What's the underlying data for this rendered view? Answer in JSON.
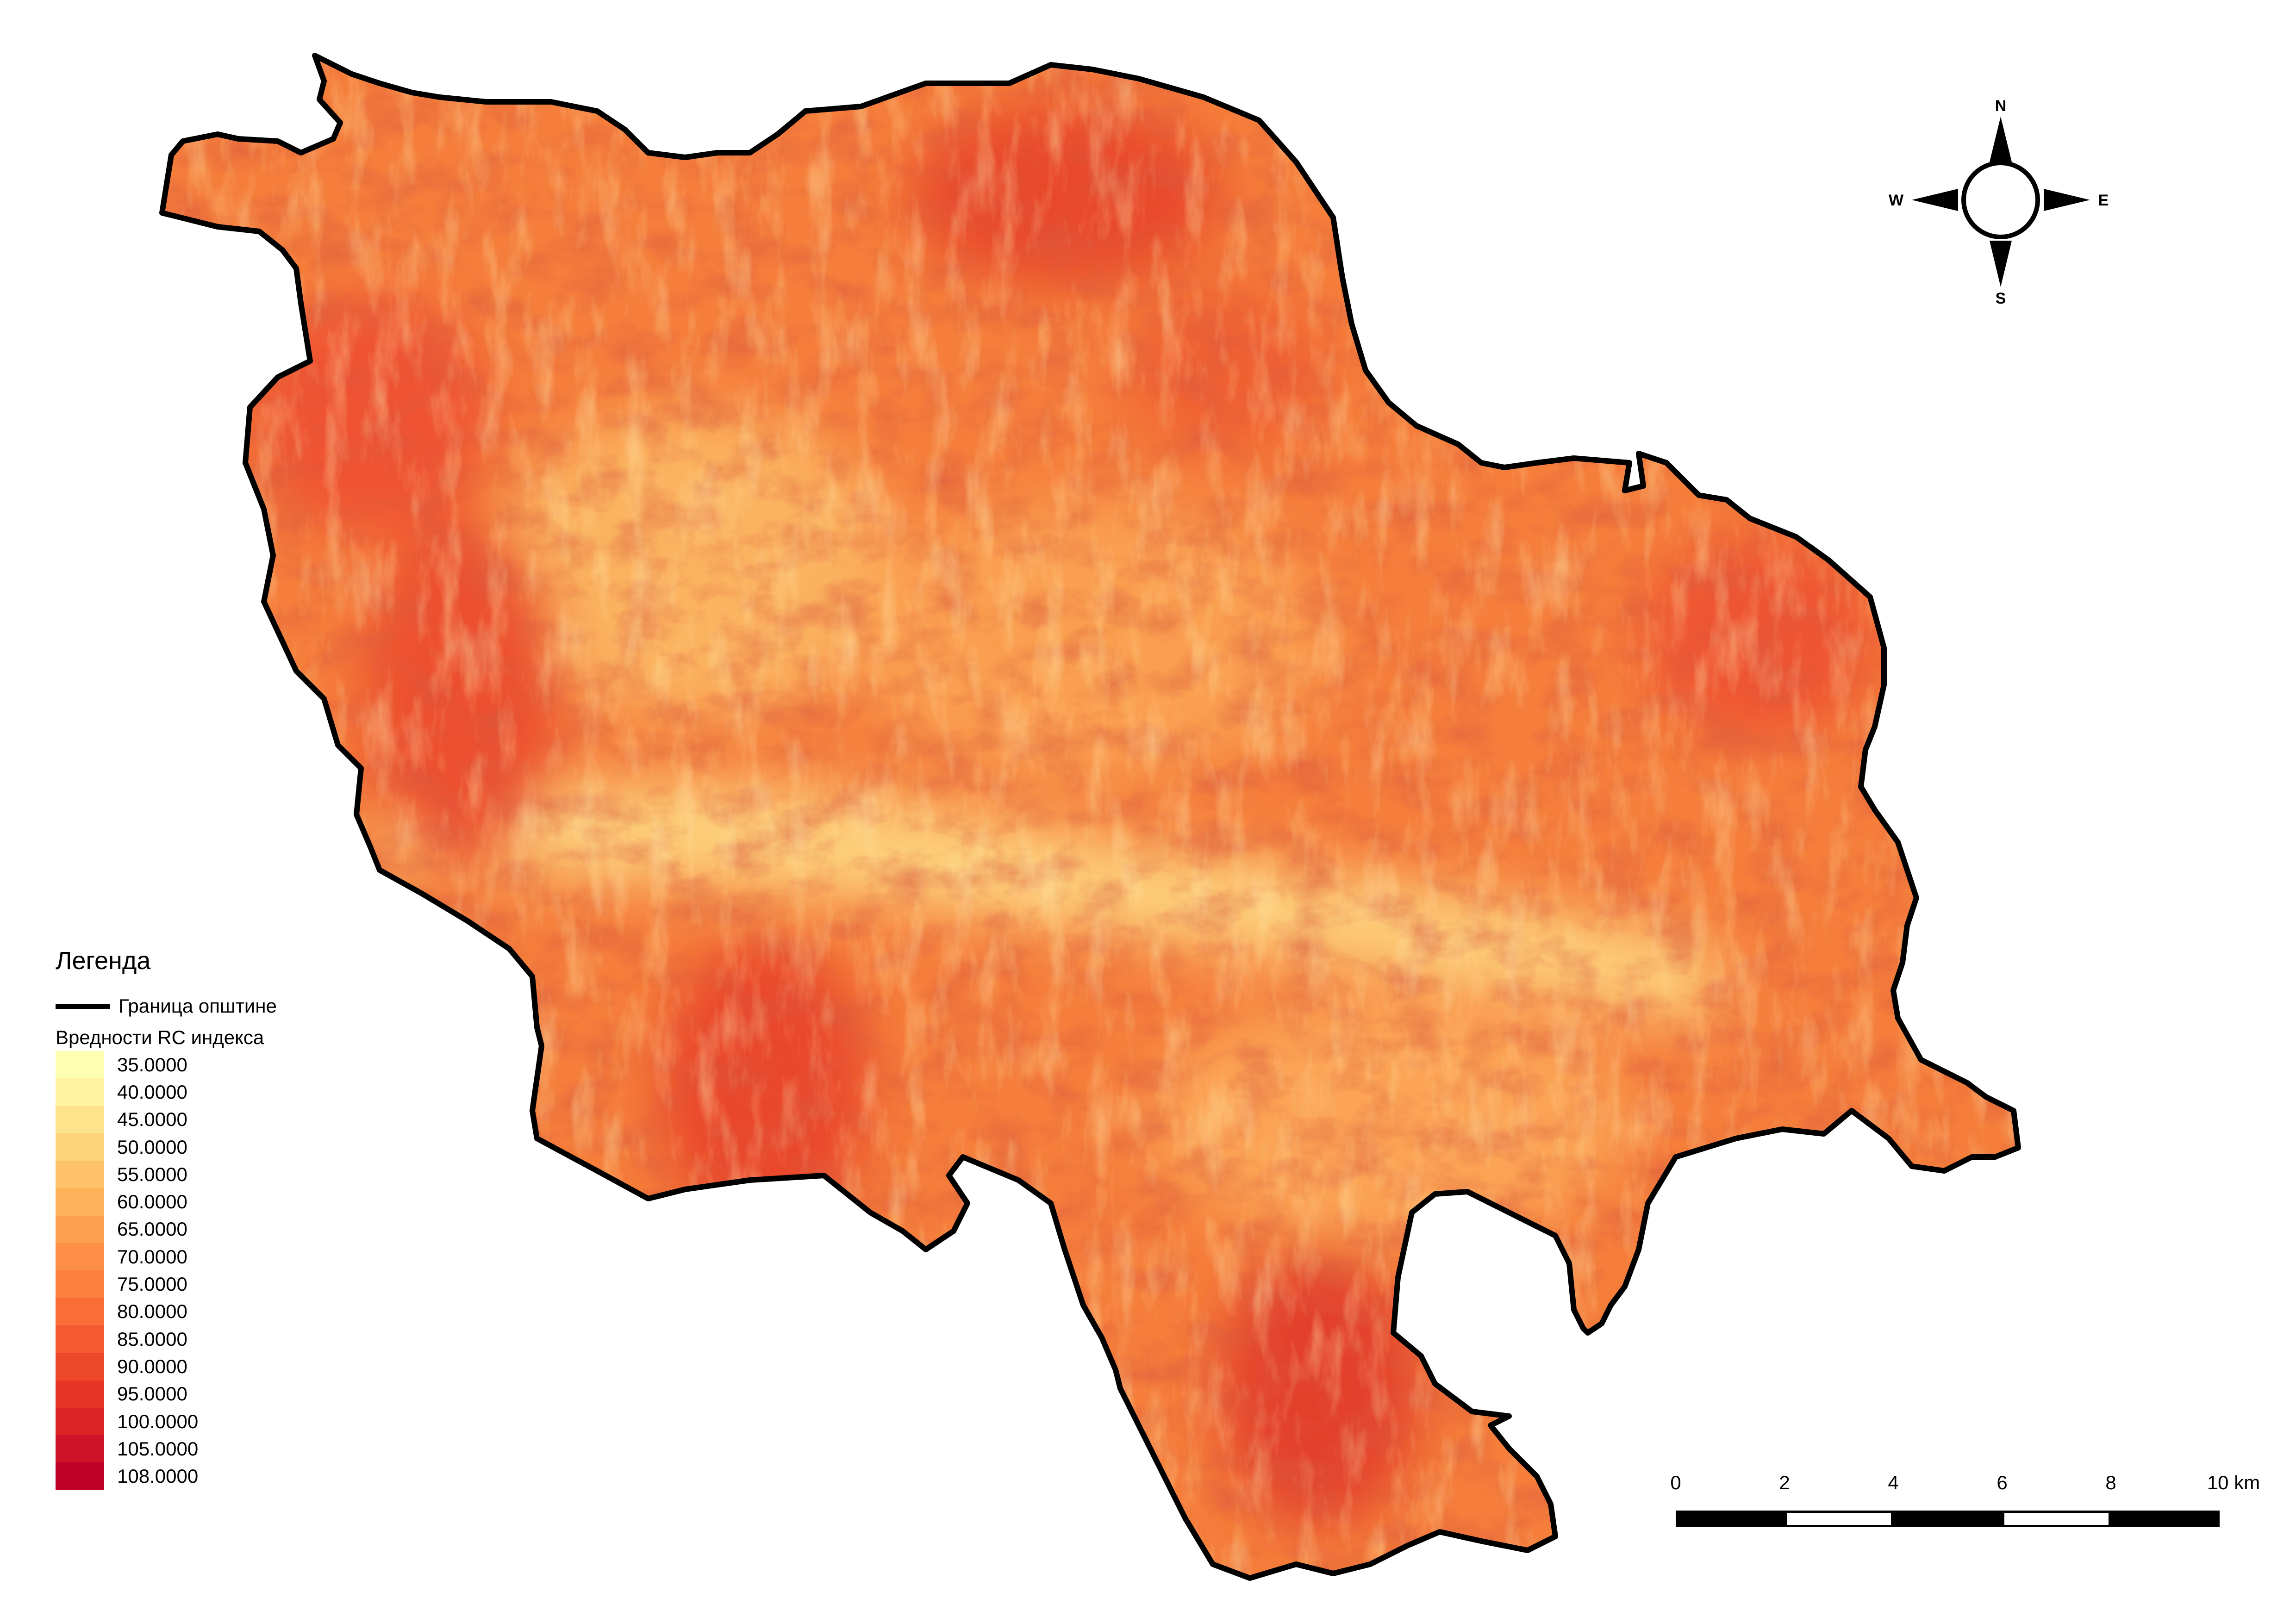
{
  "legend": {
    "title": "Легенда",
    "boundary_label": "Граница општине",
    "ramp_title": "Вредности RC индекса",
    "classes": [
      {
        "label": "35.0000",
        "color": "#ffffb2"
      },
      {
        "label": "40.0000",
        "color": "#fff1a0"
      },
      {
        "label": "45.0000",
        "color": "#fee38d"
      },
      {
        "label": "50.0000",
        "color": "#fed47b"
      },
      {
        "label": "55.0000",
        "color": "#fec36a"
      },
      {
        "label": "60.0000",
        "color": "#feb25a"
      },
      {
        "label": "65.0000",
        "color": "#fda14f"
      },
      {
        "label": "70.0000",
        "color": "#fd9046"
      },
      {
        "label": "75.0000",
        "color": "#fc7f3e"
      },
      {
        "label": "80.0000",
        "color": "#fa6d37"
      },
      {
        "label": "85.0000",
        "color": "#f55b31"
      },
      {
        "label": "90.0000",
        "color": "#ee482b"
      },
      {
        "label": "95.0000",
        "color": "#e63526"
      },
      {
        "label": "100.0000",
        "color": "#dc2326"
      },
      {
        "label": "105.0000",
        "color": "#cf1429"
      },
      {
        "label": "108.0000",
        "color": "#bd0026"
      }
    ]
  },
  "compass": {
    "north": "N",
    "south": "S",
    "east": "E",
    "west": "W"
  },
  "scale_bar": {
    "ticks": [
      {
        "label": "0",
        "value": 0
      },
      {
        "label": "2",
        "value": 2
      },
      {
        "label": "4",
        "value": 4
      },
      {
        "label": "6",
        "value": 6
      },
      {
        "label": "8",
        "value": 8
      },
      {
        "label": "10 km",
        "value": 10
      }
    ]
  }
}
